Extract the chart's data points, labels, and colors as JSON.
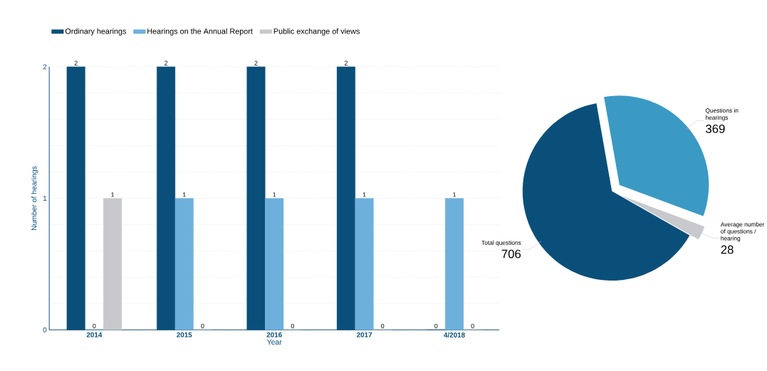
{
  "chart_data": [
    {
      "type": "bar",
      "categories": [
        "2014",
        "2015",
        "2016",
        "2017",
        "4/2018"
      ],
      "xlabel": "Year",
      "ylabel": "Number of hearings",
      "series": [
        {
          "name": "Ordinary hearings",
          "color": "#0a4f7a",
          "values": [
            2,
            2,
            2,
            2,
            0
          ]
        },
        {
          "name": "Hearings on the Annual Report",
          "color": "#6db0dc",
          "values": [
            0,
            1,
            1,
            1,
            1
          ]
        },
        {
          "name": "Public exchange of views",
          "color": "#c8c9cc",
          "values": [
            1,
            0,
            0,
            0,
            0
          ]
        }
      ],
      "ylim": [
        0,
        2
      ],
      "yticks": [
        0,
        {
          "value": 0.2,
          "label": null
        },
        {
          "value": 0.4,
          "label": null
        },
        {
          "value": 0.6,
          "label": null
        },
        {
          "value": 0.8,
          "label": null
        },
        1,
        {
          "value": 1.2,
          "label": null
        },
        {
          "value": 1.4,
          "label": null
        },
        {
          "value": 1.6,
          "label": null
        },
        {
          "value": 1.8,
          "label": null
        },
        2
      ],
      "grid": "y",
      "legend": "top",
      "data_labels": true
    },
    {
      "type": "pie",
      "categories": [
        "Questions in hearings",
        "Average number of questions / hearing",
        "Total questions"
      ],
      "values": [
        369,
        28,
        706
      ],
      "colors": [
        "#3a9ac4",
        "#c8c9cc",
        "#0a4f7a"
      ],
      "data_labels": true
    }
  ]
}
